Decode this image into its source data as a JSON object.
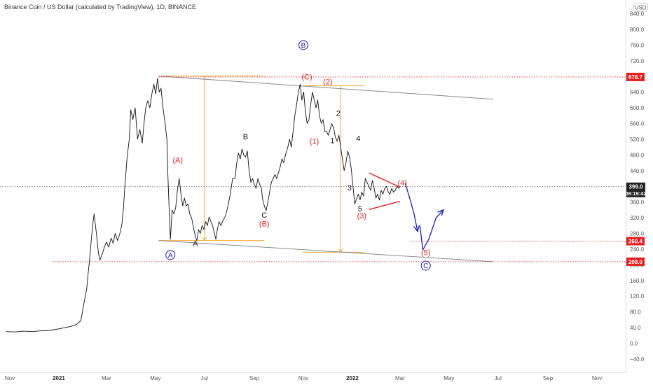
{
  "chart_data": {
    "type": "line",
    "title": "Binance Coin / US Dollar (calculated by TradingView), 1D, BINANCE",
    "currency": "USD",
    "y_axis_top_label": "8",
    "ylim": [
      -60,
      900
    ],
    "y_ticks": [
      "840.0",
      "800.0",
      "760.0",
      "720.0",
      "680.0",
      "640.0",
      "600.0",
      "560.0",
      "520.0",
      "480.0",
      "440.0",
      "400.0",
      "360.0",
      "320.0",
      "280.0",
      "240.0",
      "200.0",
      "160.0",
      "120.0",
      "80.0",
      "40.0",
      "0.0",
      "−40.0"
    ],
    "x_ticks": [
      {
        "label": "Nov",
        "x": 2020.833,
        "bold": false
      },
      {
        "label": "2021",
        "x": 2021.0,
        "bold": true
      },
      {
        "label": "Mar",
        "x": 2021.162,
        "bold": false
      },
      {
        "label": "May",
        "x": 2021.329,
        "bold": false
      },
      {
        "label": "Jul",
        "x": 2021.496,
        "bold": false
      },
      {
        "label": "Sep",
        "x": 2021.666,
        "bold": false
      },
      {
        "label": "Nov",
        "x": 2021.833,
        "bold": false
      },
      {
        "label": "2022",
        "x": 2022.0,
        "bold": true
      },
      {
        "label": "Mar",
        "x": 2022.162,
        "bold": false
      },
      {
        "label": "May",
        "x": 2022.329,
        "bold": false
      },
      {
        "label": "Jul",
        "x": 2022.496,
        "bold": false
      },
      {
        "label": "Sep",
        "x": 2022.666,
        "bold": false
      },
      {
        "label": "Nov",
        "x": 2022.833,
        "bold": false
      }
    ],
    "xlim": [
      2020.82,
      2023.0
    ],
    "series": [
      {
        "values": [
          [
            2020.82,
            30
          ],
          [
            2020.85,
            29
          ],
          [
            2020.88,
            31
          ],
          [
            2020.91,
            30
          ],
          [
            2020.94,
            32
          ],
          [
            2020.97,
            33
          ],
          [
            2021.0,
            37
          ],
          [
            2021.02,
            40
          ],
          [
            2021.04,
            43
          ],
          [
            2021.06,
            48
          ],
          [
            2021.075,
            58
          ],
          [
            2021.085,
            100
          ],
          [
            2021.095,
            140
          ],
          [
            2021.1,
            180
          ],
          [
            2021.105,
            215
          ],
          [
            2021.11,
            260
          ],
          [
            2021.115,
            300
          ],
          [
            2021.12,
            330
          ],
          [
            2021.128,
            280
          ],
          [
            2021.135,
            230
          ],
          [
            2021.14,
            212
          ],
          [
            2021.148,
            228
          ],
          [
            2021.155,
            245
          ],
          [
            2021.162,
            258
          ],
          [
            2021.17,
            245
          ],
          [
            2021.178,
            268
          ],
          [
            2021.185,
            255
          ],
          [
            2021.192,
            280
          ],
          [
            2021.2,
            262
          ],
          [
            2021.208,
            280
          ],
          [
            2021.215,
            305
          ],
          [
            2021.22,
            345
          ],
          [
            2021.225,
            400
          ],
          [
            2021.232,
            470
          ],
          [
            2021.24,
            520
          ],
          [
            2021.245,
            595
          ],
          [
            2021.252,
            570
          ],
          [
            2021.26,
            600
          ],
          [
            2021.268,
            520
          ],
          [
            2021.276,
            545
          ],
          [
            2021.284,
            510
          ],
          [
            2021.29,
            560
          ],
          [
            2021.296,
            600
          ],
          [
            2021.303,
            618
          ],
          [
            2021.31,
            600
          ],
          [
            2021.318,
            640
          ],
          [
            2021.324,
            660
          ],
          [
            2021.33,
            635
          ],
          [
            2021.336,
            675
          ],
          [
            2021.342,
            640
          ],
          [
            2021.348,
            650
          ],
          [
            2021.355,
            600
          ],
          [
            2021.362,
            560
          ],
          [
            2021.368,
            520
          ],
          [
            2021.372,
            420
          ],
          [
            2021.376,
            340
          ],
          [
            2021.38,
            265
          ],
          [
            2021.386,
            340
          ],
          [
            2021.392,
            330
          ],
          [
            2021.398,
            345
          ],
          [
            2021.404,
            390
          ],
          [
            2021.41,
            420
          ],
          [
            2021.416,
            380
          ],
          [
            2021.422,
            350
          ],
          [
            2021.428,
            370
          ],
          [
            2021.434,
            350
          ],
          [
            2021.44,
            355
          ],
          [
            2021.446,
            330
          ],
          [
            2021.452,
            320
          ],
          [
            2021.46,
            290
          ],
          [
            2021.466,
            270
          ],
          [
            2021.47,
            262
          ],
          [
            2021.476,
            290
          ],
          [
            2021.482,
            280
          ],
          [
            2021.488,
            300
          ],
          [
            2021.494,
            290
          ],
          [
            2021.5,
            310
          ],
          [
            2021.506,
            300
          ],
          [
            2021.512,
            322
          ],
          [
            2021.518,
            310
          ],
          [
            2021.524,
            300
          ],
          [
            2021.53,
            280
          ],
          [
            2021.535,
            265
          ],
          [
            2021.54,
            290
          ],
          [
            2021.546,
            310
          ],
          [
            2021.552,
            300
          ],
          [
            2021.56,
            315
          ],
          [
            2021.568,
            325
          ],
          [
            2021.576,
            350
          ],
          [
            2021.584,
            380
          ],
          [
            2021.592,
            420
          ],
          [
            2021.6,
            420
          ],
          [
            2021.606,
            460
          ],
          [
            2021.612,
            485
          ],
          [
            2021.618,
            470
          ],
          [
            2021.624,
            495
          ],
          [
            2021.63,
            480
          ],
          [
            2021.636,
            475
          ],
          [
            2021.642,
            490
          ],
          [
            2021.648,
            440
          ],
          [
            2021.654,
            410
          ],
          [
            2021.66,
            420
          ],
          [
            2021.666,
            405
          ],
          [
            2021.672,
            395
          ],
          [
            2021.678,
            420
          ],
          [
            2021.684,
            405
          ],
          [
            2021.69,
            395
          ],
          [
            2021.694,
            368
          ],
          [
            2021.7,
            350
          ],
          [
            2021.706,
            338
          ],
          [
            2021.712,
            360
          ],
          [
            2021.718,
            385
          ],
          [
            2021.724,
            410
          ],
          [
            2021.73,
            420
          ],
          [
            2021.736,
            430
          ],
          [
            2021.742,
            420
          ],
          [
            2021.748,
            435
          ],
          [
            2021.754,
            450
          ],
          [
            2021.76,
            470
          ],
          [
            2021.766,
            460
          ],
          [
            2021.772,
            480
          ],
          [
            2021.78,
            500
          ],
          [
            2021.786,
            520
          ],
          [
            2021.792,
            500
          ],
          [
            2021.798,
            540
          ],
          [
            2021.804,
            580
          ],
          [
            2021.81,
            610
          ],
          [
            2021.816,
            640
          ],
          [
            2021.822,
            660
          ],
          [
            2021.828,
            620
          ],
          [
            2021.834,
            640
          ],
          [
            2021.84,
            590
          ],
          [
            2021.846,
            560
          ],
          [
            2021.852,
            570
          ],
          [
            2021.858,
            610
          ],
          [
            2021.864,
            640
          ],
          [
            2021.87,
            620
          ],
          [
            2021.876,
            600
          ],
          [
            2021.882,
            620
          ],
          [
            2021.888,
            580
          ],
          [
            2021.894,
            560
          ],
          [
            2021.9,
            570
          ],
          [
            2021.906,
            540
          ],
          [
            2021.912,
            540
          ],
          [
            2021.918,
            530
          ],
          [
            2021.924,
            545
          ],
          [
            2021.93,
            560
          ],
          [
            2021.936,
            548
          ],
          [
            2021.942,
            525
          ],
          [
            2021.948,
            515
          ],
          [
            2021.954,
            530
          ],
          [
            2021.96,
            500
          ],
          [
            2021.966,
            470
          ],
          [
            2021.972,
            440
          ],
          [
            2021.978,
            460
          ],
          [
            2021.984,
            490
          ],
          [
            2021.99,
            475
          ],
          [
            2021.996,
            445
          ],
          [
            2022.002,
            400
          ],
          [
            2022.008,
            355
          ],
          [
            2022.014,
            368
          ],
          [
            2022.02,
            380
          ],
          [
            2022.026,
            365
          ],
          [
            2022.032,
            385
          ],
          [
            2022.038,
            375
          ],
          [
            2022.044,
            420
          ],
          [
            2022.05,
            410
          ],
          [
            2022.056,
            400
          ],
          [
            2022.062,
            390
          ],
          [
            2022.068,
            415
          ],
          [
            2022.074,
            395
          ],
          [
            2022.08,
            370
          ],
          [
            2022.086,
            380
          ],
          [
            2022.092,
            365
          ],
          [
            2022.098,
            390
          ],
          [
            2022.104,
            380
          ],
          [
            2022.11,
            395
          ],
          [
            2022.116,
            400
          ],
          [
            2022.122,
            385
          ],
          [
            2022.128,
            380
          ],
          [
            2022.134,
            395
          ],
          [
            2022.14,
            385
          ],
          [
            2022.146,
            390
          ],
          [
            2022.152,
            400
          ],
          [
            2022.158,
            395
          ],
          [
            2022.162,
            399
          ]
        ]
      }
    ],
    "projection": {
      "color": "#1a1aa8",
      "points": [
        [
          2022.18,
          408
        ],
        [
          2022.195,
          370
        ],
        [
          2022.21,
          330
        ],
        [
          2022.222,
          285
        ]
      ],
      "points2": [
        [
          2022.24,
          238
        ],
        [
          2022.26,
          265
        ],
        [
          2022.285,
          320
        ],
        [
          2022.31,
          340
        ]
      ]
    },
    "price_levels": [
      {
        "value": 678.7,
        "label": "678.7",
        "color": "#e31e1e"
      },
      {
        "value": 260.4,
        "label": "260.4",
        "color": "#e31e1e"
      },
      {
        "value": 208.0,
        "label": "208.0",
        "color": "#e31e1e"
      }
    ],
    "current_price": {
      "value": 399.0,
      "label": "399.0",
      "countdown": "08:19:42",
      "color": "#222222"
    },
    "channel_lines": [
      {
        "from": [
          2021.34,
          681
        ],
        "to": [
          2022.48,
          622
        ],
        "color": "#888888"
      },
      {
        "from": [
          2021.34,
          262
        ],
        "to": [
          2022.48,
          208
        ],
        "color": "#888888"
      }
    ],
    "triangle_lines": [
      {
        "from": [
          2022.057,
          434
        ],
        "to": [
          2022.162,
          398
        ],
        "color": "#e31e1e"
      },
      {
        "from": [
          2022.057,
          341
        ],
        "to": [
          2022.162,
          362
        ],
        "color": "#e31e1e"
      }
    ],
    "orange_guides": {
      "color": "#f2a93b",
      "horizontals": [
        {
          "from": 2021.34,
          "to": 2021.7,
          "value": 681
        },
        {
          "from": 2021.34,
          "to": 2021.7,
          "value": 262
        },
        {
          "from": 2021.83,
          "to": 2022.04,
          "value": 656
        },
        {
          "from": 2021.83,
          "to": 2022.04,
          "value": 232
        }
      ],
      "verticals": [
        {
          "x": 2021.496,
          "from": 681,
          "to": 262
        },
        {
          "x": 2021.96,
          "from": 656,
          "to": 232
        }
      ]
    },
    "wave_labels": [
      {
        "text": "B",
        "x": 2021.833,
        "y": 760,
        "style": "blue-circle"
      },
      {
        "text": "A",
        "x": 2021.38,
        "y": 225,
        "style": "blue-circle"
      },
      {
        "text": "C",
        "x": 2022.25,
        "y": 198,
        "style": "blue-circle"
      },
      {
        "text": "(A)",
        "x": 2021.405,
        "y": 460,
        "style": "red"
      },
      {
        "text": "(B)",
        "x": 2021.7,
        "y": 298,
        "style": "red"
      },
      {
        "text": "(C)",
        "x": 2021.845,
        "y": 672,
        "style": "red"
      },
      {
        "text": "(1)",
        "x": 2021.87,
        "y": 508,
        "style": "red"
      },
      {
        "text": "(2)",
        "x": 2021.916,
        "y": 660,
        "style": "red"
      },
      {
        "text": "(3)",
        "x": 2022.032,
        "y": 318,
        "style": "red"
      },
      {
        "text": "(4)",
        "x": 2022.17,
        "y": 402,
        "style": "red"
      },
      {
        "text": "(5)",
        "x": 2022.25,
        "y": 225,
        "style": "red"
      },
      {
        "text": "A",
        "x": 2021.465,
        "y": 248,
        "style": "black"
      },
      {
        "text": "B",
        "x": 2021.636,
        "y": 520,
        "style": "black"
      },
      {
        "text": "C",
        "x": 2021.7,
        "y": 320,
        "style": "black"
      },
      {
        "text": "1",
        "x": 2021.932,
        "y": 510,
        "style": "black"
      },
      {
        "text": "2",
        "x": 2021.952,
        "y": 580,
        "style": "black"
      },
      {
        "text": "3",
        "x": 2021.99,
        "y": 390,
        "style": "black"
      },
      {
        "text": "4",
        "x": 2022.02,
        "y": 515,
        "style": "black"
      },
      {
        "text": "5",
        "x": 2022.026,
        "y": 336,
        "style": "black"
      }
    ]
  }
}
